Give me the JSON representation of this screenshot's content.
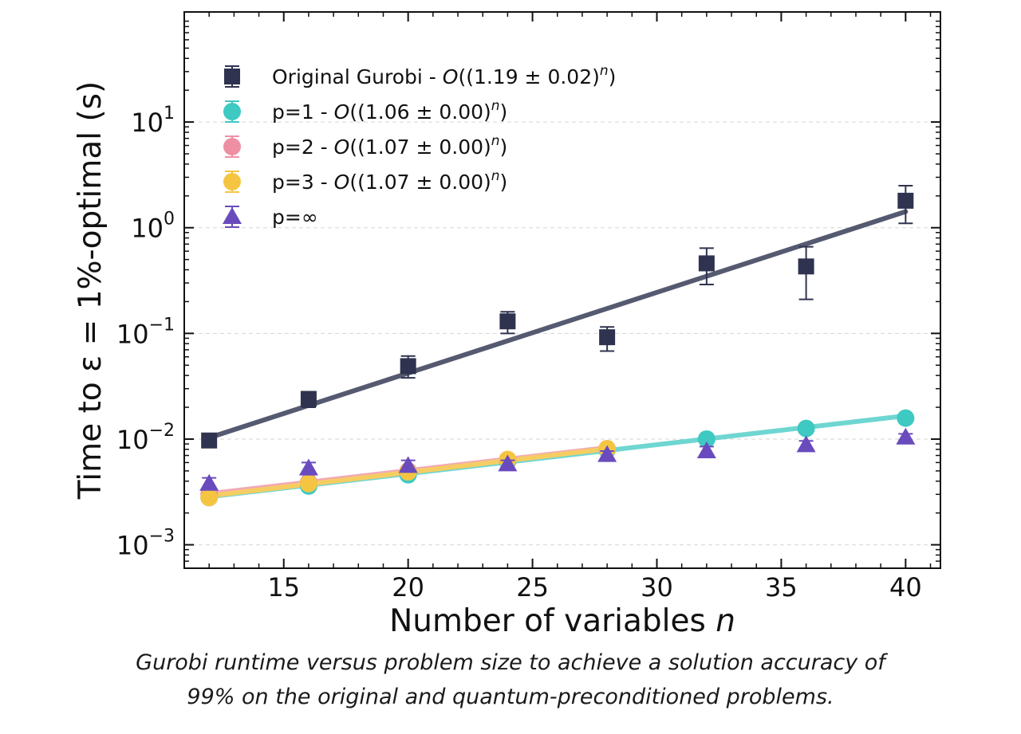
{
  "chart_data": {
    "type": "scatter",
    "xlabel": "Number of variables n",
    "ylabel": "Time to ε = 1%-optimal (s)",
    "xlim": [
      11,
      41.4
    ],
    "ylim": [
      0.0006,
      110
    ],
    "yscale": "log",
    "x_ticks": [
      15,
      20,
      25,
      30,
      35,
      40
    ],
    "x_tick_labels": [
      "15",
      "20",
      "25",
      "30",
      "35",
      "40"
    ],
    "y_ticks": [
      0.001,
      0.01,
      0.1,
      1,
      10
    ],
    "y_tick_labels": [
      {
        "base": "10",
        "exp": "−3"
      },
      {
        "base": "10",
        "exp": "−2"
      },
      {
        "base": "10",
        "exp": "−1"
      },
      {
        "base": "10",
        "exp": "0"
      },
      {
        "base": "10",
        "exp": "1"
      }
    ],
    "grid": "horizontal-dashed",
    "legend_position": "top-left",
    "series": [
      {
        "name": "Original Gurobi - O((1.19 ± 0.02)^n)",
        "legend_prefix": "Original Gurobi - ",
        "legend_fit": "O((1.19 ± 0.02)",
        "legend_exp": "n",
        "legend_suffix": ")",
        "color": "#2f334f",
        "marker": "square",
        "x": [
          12,
          16,
          20,
          24,
          28,
          32,
          36,
          40
        ],
        "y": [
          0.0097,
          0.024,
          0.049,
          0.13,
          0.092,
          0.46,
          0.43,
          1.8
        ],
        "err_low": [
          0.0091,
          0.02,
          0.038,
          0.1,
          0.068,
          0.29,
          0.21,
          1.1
        ],
        "err_high": [
          0.0104,
          0.028,
          0.061,
          0.16,
          0.115,
          0.64,
          0.66,
          2.5
        ],
        "fit": {
          "x": [
            12,
            40
          ],
          "y": [
            0.0103,
            1.42
          ],
          "color": "#555a70"
        }
      },
      {
        "name": "p=1 - O((1.06 ± 0.00)^n)",
        "legend_prefix": "p=1 - ",
        "legend_fit": "O((1.06 ± 0.00)",
        "legend_exp": "n",
        "legend_suffix": ")",
        "color": "#3ec9c3",
        "marker": "circle",
        "x": [
          12,
          16,
          20,
          24,
          28,
          32,
          36,
          40
        ],
        "y": [
          0.0028,
          0.0036,
          0.0046,
          0.0062,
          0.0079,
          0.01,
          0.0126,
          0.0158
        ],
        "fit": {
          "x": [
            12,
            40
          ],
          "y": [
            0.00285,
            0.0166
          ],
          "color": "#6fd6d1"
        }
      },
      {
        "name": "p=2 - O((1.07 ± 0.00)^n)",
        "legend_prefix": "p=2 - ",
        "legend_fit": "O((1.07 ± 0.00)",
        "legend_exp": "n",
        "legend_suffix": ")",
        "color": "#ef8fa3",
        "marker": "circle",
        "x": [
          12,
          16,
          20,
          24,
          28
        ],
        "y": [
          0.003,
          0.0039,
          0.005,
          0.0064,
          0.0081
        ],
        "fit": {
          "x": [
            12,
            28
          ],
          "y": [
            0.00305,
            0.0083
          ],
          "color": "#f2a9b6"
        }
      },
      {
        "name": "p=3 - O((1.07 ± 0.00)^n)",
        "legend_prefix": "p=3 - ",
        "legend_fit": "O((1.07 ± 0.00)",
        "legend_exp": "n",
        "legend_suffix": ")",
        "color": "#f5c542",
        "marker": "circle",
        "x": [
          12,
          16,
          20,
          24,
          28
        ],
        "y": [
          0.0028,
          0.0038,
          0.0049,
          0.0064,
          0.0081
        ],
        "fit": {
          "x": [
            12,
            28
          ],
          "y": [
            0.0029,
            0.0081
          ],
          "color": "#f5cd63"
        }
      },
      {
        "name": "p=∞",
        "legend_prefix": "p=∞",
        "legend_fit": "",
        "legend_exp": "",
        "legend_suffix": "",
        "color": "#6a4bbd",
        "marker": "triangle",
        "x": [
          12,
          16,
          20,
          24,
          28,
          32,
          36,
          40
        ],
        "y": [
          0.0038,
          0.0053,
          0.0056,
          0.0058,
          0.0071,
          0.0077,
          0.0088,
          0.0104
        ],
        "err_low": [
          0.0034,
          0.0046,
          0.005,
          0.0054,
          0.0066,
          0.007,
          0.0081,
          0.0097
        ],
        "err_high": [
          0.0043,
          0.006,
          0.0063,
          0.0063,
          0.0077,
          0.0085,
          0.0096,
          0.0112
        ]
      }
    ]
  },
  "caption": {
    "line1": "Gurobi runtime versus problem size to achieve a solution accuracy of",
    "line2": "99% on the original and quantum-preconditioned problems."
  }
}
